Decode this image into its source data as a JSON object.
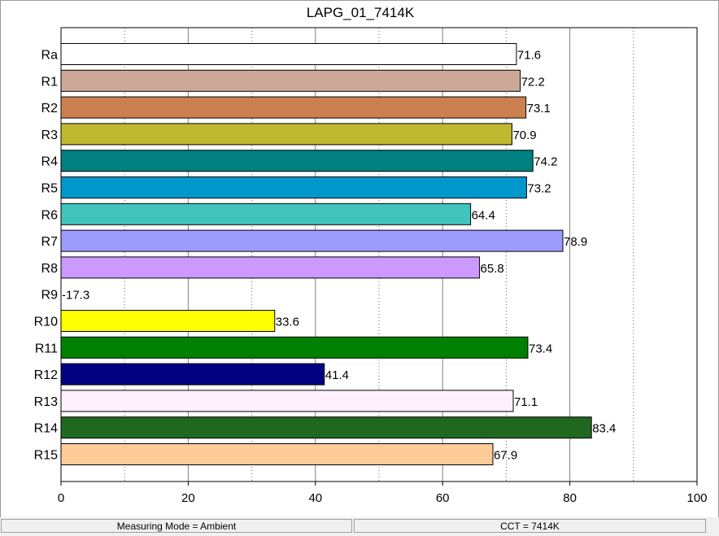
{
  "chart_data": {
    "type": "bar",
    "orientation": "horizontal",
    "title": "LAPG_01_7414K",
    "categories": [
      "Ra",
      "R1",
      "R2",
      "R3",
      "R4",
      "R5",
      "R6",
      "R7",
      "R8",
      "R9",
      "R10",
      "R11",
      "R12",
      "R13",
      "R14",
      "R15"
    ],
    "values": [
      71.6,
      72.2,
      73.1,
      70.9,
      74.2,
      73.2,
      64.4,
      78.9,
      65.8,
      -17.3,
      33.6,
      73.4,
      41.4,
      71.1,
      83.4,
      67.9
    ],
    "value_labels": [
      "71.6",
      "72.2",
      "73.1",
      "70.9",
      "74.2",
      "73.2",
      "64.4",
      "78.9",
      "65.8",
      "-17.3",
      "33.6",
      "73.4",
      "41.4",
      "71.1",
      "83.4",
      "67.9"
    ],
    "colors": [
      "#ffffff",
      "#cca898",
      "#cc8050",
      "#c0b830",
      "#008080",
      "#0098cc",
      "#40c4bc",
      "#9c9cff",
      "#cc99ff",
      "#ff0000",
      "#ffff00",
      "#008000",
      "#000080",
      "#fff0ff",
      "#206820",
      "#ffcc99"
    ],
    "xlim": [
      0,
      100
    ],
    "xticks": [
      0,
      20,
      40,
      60,
      80,
      100
    ],
    "xtick_labels": [
      "0",
      "20",
      "40",
      "60",
      "80",
      "100"
    ],
    "grid": "vertical"
  },
  "status": {
    "measuring_mode": "Measuring Mode = Ambient",
    "cct": "CCT = 7414K"
  }
}
